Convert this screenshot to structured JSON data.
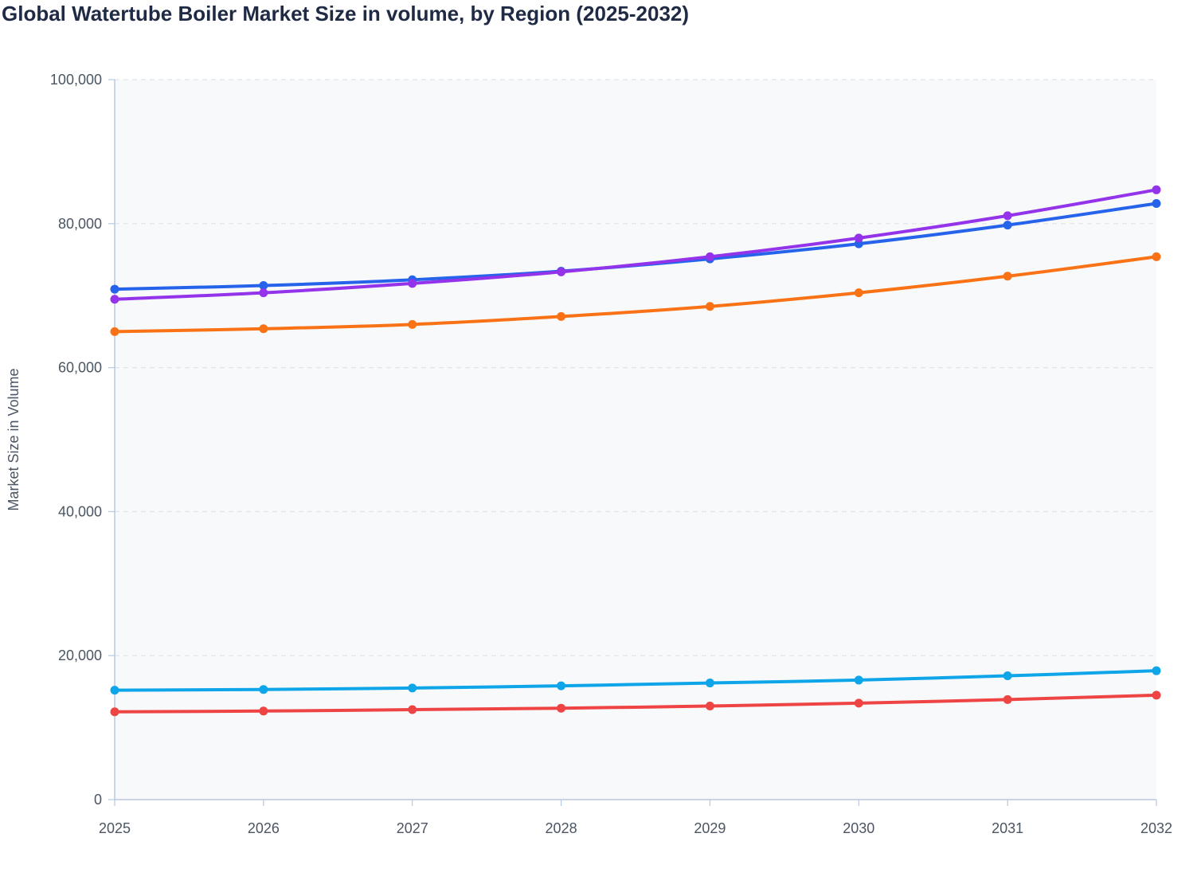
{
  "chart_data": {
    "type": "line",
    "title": "Global Watertube Boiler Market Size in volume, by Region (2025-2032)",
    "xlabel": "",
    "ylabel": "Market Size in Volume",
    "x": [
      "2025",
      "2026",
      "2027",
      "2028",
      "2029",
      "2030",
      "2031",
      "2032"
    ],
    "ylim": [
      0,
      100000
    ],
    "yticks": [
      0,
      20000,
      40000,
      60000,
      80000,
      100000
    ],
    "ytick_labels": [
      "0",
      "20,000",
      "40,000",
      "60,000",
      "80,000",
      "100,000"
    ],
    "grid": true,
    "legend": "none",
    "series": [
      {
        "color": "#2563eb",
        "values": [
          70900,
          71400,
          72200,
          73400,
          75100,
          77200,
          79800,
          82800
        ]
      },
      {
        "color": "#9333ea",
        "values": [
          69500,
          70400,
          71700,
          73300,
          75400,
          78000,
          81100,
          84700
        ]
      },
      {
        "color": "#f97316",
        "values": [
          65000,
          65400,
          66000,
          67100,
          68500,
          70400,
          72700,
          75400
        ]
      },
      {
        "color": "#0ea5e9",
        "values": [
          15200,
          15300,
          15500,
          15800,
          16200,
          16600,
          17200,
          17900
        ]
      },
      {
        "color": "#ef4444",
        "values": [
          12200,
          12300,
          12500,
          12700,
          13000,
          13400,
          13900,
          14500
        ]
      }
    ]
  }
}
